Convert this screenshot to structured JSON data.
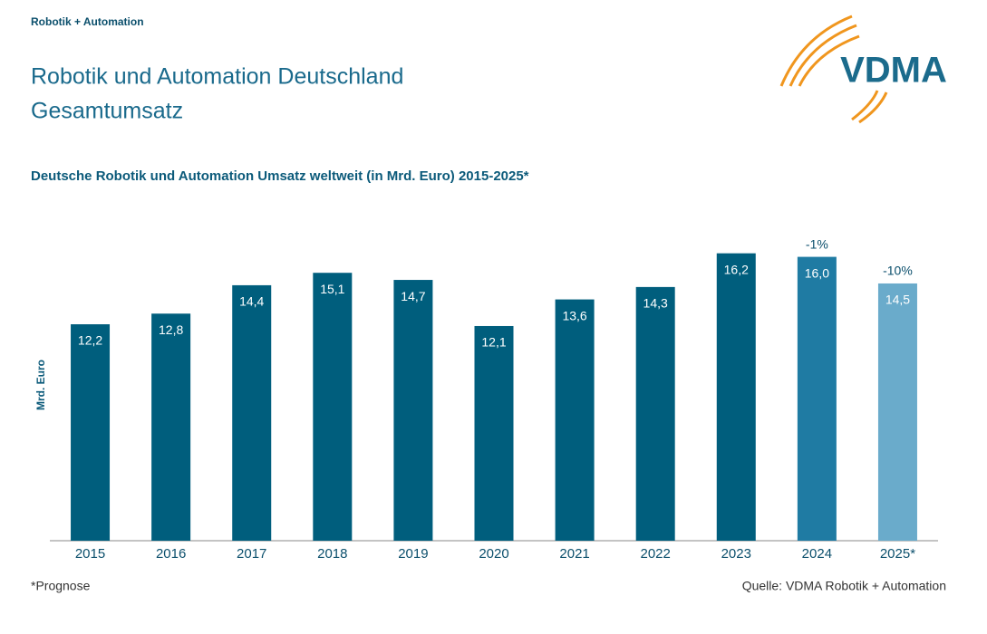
{
  "header": {
    "section": "Robotik + Automation",
    "title_line1": "Robotik und Automation Deutschland",
    "title_line2": "Gesamtumsatz",
    "logo": "VDMA"
  },
  "chart_data": {
    "type": "bar",
    "title": "Deutsche Robotik und Automation Umsatz weltweit (in Mrd. Euro) 2015-2025*",
    "y_label": "Mrd. Euro",
    "categories": [
      "2015",
      "2016",
      "2017",
      "2018",
      "2019",
      "2020",
      "2021",
      "2022",
      "2023",
      "2024",
      "2025*"
    ],
    "values": [
      12.2,
      12.8,
      14.4,
      15.1,
      14.7,
      12.1,
      13.6,
      14.3,
      16.2,
      16.0,
      14.5
    ],
    "value_labels": [
      "12,2",
      "12,8",
      "14,4",
      "15,1",
      "14,7",
      "12,1",
      "13,6",
      "14,3",
      "16,2",
      "16,0",
      "14,5"
    ],
    "change_labels": [
      null,
      null,
      null,
      null,
      null,
      null,
      null,
      null,
      null,
      "-1%",
      "-10%"
    ],
    "colors": [
      "#005e7d",
      "#005e7d",
      "#005e7d",
      "#005e7d",
      "#005e7d",
      "#005e7d",
      "#005e7d",
      "#005e7d",
      "#005e7d",
      "#1f7ba3",
      "#6aabcb"
    ],
    "ylim": [
      0,
      17
    ],
    "grid": false
  },
  "footer": {
    "note": "*Prognose",
    "source": "Quelle: VDMA Robotik + Automation"
  }
}
